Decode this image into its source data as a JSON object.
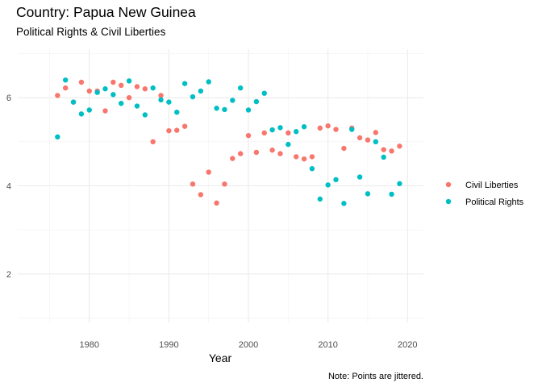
{
  "chart_data": {
    "type": "scatter",
    "title": "Country: Papua New Guinea",
    "subtitle": "Political Rights & Civil Liberties",
    "xlabel": "Year",
    "ylabel": "",
    "caption": "Note: Points are jittered.",
    "xlim": [
      1971,
      2022
    ],
    "ylim": [
      0.9,
      7.1
    ],
    "x_ticks": [
      1980,
      1990,
      2000,
      2010,
      2020
    ],
    "y_ticks": [
      2,
      4,
      6
    ],
    "grid": true,
    "legend_position": "right",
    "series": [
      {
        "name": "Civil Liberties",
        "color": "#F8766D",
        "points": [
          [
            1976,
            6.05
          ],
          [
            1977,
            6.22
          ],
          [
            1978,
            5.9
          ],
          [
            1979,
            6.35
          ],
          [
            1980,
            6.15
          ],
          [
            1981,
            6.15
          ],
          [
            1982,
            5.7
          ],
          [
            1983,
            6.35
          ],
          [
            1984,
            6.28
          ],
          [
            1985,
            6.0
          ],
          [
            1986,
            6.25
          ],
          [
            1987,
            6.2
          ],
          [
            1988,
            5.0
          ],
          [
            1989,
            6.05
          ],
          [
            1990,
            5.25
          ],
          [
            1991,
            5.26
          ],
          [
            1992,
            5.35
          ],
          [
            1993,
            4.04
          ],
          [
            1994,
            3.8
          ],
          [
            1995,
            4.31
          ],
          [
            1996,
            3.61
          ],
          [
            1997,
            4.04
          ],
          [
            1998,
            4.62
          ],
          [
            1999,
            4.73
          ],
          [
            2000,
            5.14
          ],
          [
            2001,
            4.76
          ],
          [
            2002,
            5.2
          ],
          [
            2003,
            4.81
          ],
          [
            2004,
            4.73
          ],
          [
            2005,
            5.2
          ],
          [
            2006,
            4.66
          ],
          [
            2007,
            4.61
          ],
          [
            2008,
            4.66
          ],
          [
            2009,
            5.31
          ],
          [
            2010,
            5.36
          ],
          [
            2011,
            5.28
          ],
          [
            2012,
            4.85
          ],
          [
            2013,
            5.31
          ],
          [
            2014,
            5.09
          ],
          [
            2015,
            5.04
          ],
          [
            2016,
            5.21
          ],
          [
            2017,
            4.82
          ],
          [
            2018,
            4.79
          ],
          [
            2019,
            4.9
          ]
        ]
      },
      {
        "name": "Political Rights",
        "color": "#00BFC4",
        "points": [
          [
            1976,
            5.11
          ],
          [
            1977,
            6.4
          ],
          [
            1978,
            5.9
          ],
          [
            1979,
            5.63
          ],
          [
            1980,
            5.72
          ],
          [
            1981,
            6.12
          ],
          [
            1982,
            6.2
          ],
          [
            1983,
            6.07
          ],
          [
            1984,
            5.87
          ],
          [
            1985,
            6.38
          ],
          [
            1986,
            5.81
          ],
          [
            1987,
            5.61
          ],
          [
            1988,
            6.22
          ],
          [
            1989,
            5.95
          ],
          [
            1990,
            5.9
          ],
          [
            1991,
            5.67
          ],
          [
            1992,
            6.32
          ],
          [
            1993,
            6.02
          ],
          [
            1994,
            6.15
          ],
          [
            1995,
            6.36
          ],
          [
            1996,
            5.76
          ],
          [
            1997,
            5.73
          ],
          [
            1998,
            5.94
          ],
          [
            1999,
            6.22
          ],
          [
            2000,
            5.72
          ],
          [
            2001,
            5.91
          ],
          [
            2002,
            6.1
          ],
          [
            2003,
            5.27
          ],
          [
            2004,
            5.32
          ],
          [
            2005,
            4.94
          ],
          [
            2006,
            5.23
          ],
          [
            2007,
            5.34
          ],
          [
            2008,
            4.39
          ],
          [
            2009,
            3.7
          ],
          [
            2010,
            4.02
          ],
          [
            2011,
            4.14
          ],
          [
            2012,
            3.6
          ],
          [
            2013,
            5.28
          ],
          [
            2014,
            4.2
          ],
          [
            2015,
            3.82
          ],
          [
            2016,
            5.0
          ],
          [
            2017,
            4.65
          ],
          [
            2018,
            3.81
          ],
          [
            2019,
            4.05
          ]
        ]
      }
    ]
  }
}
